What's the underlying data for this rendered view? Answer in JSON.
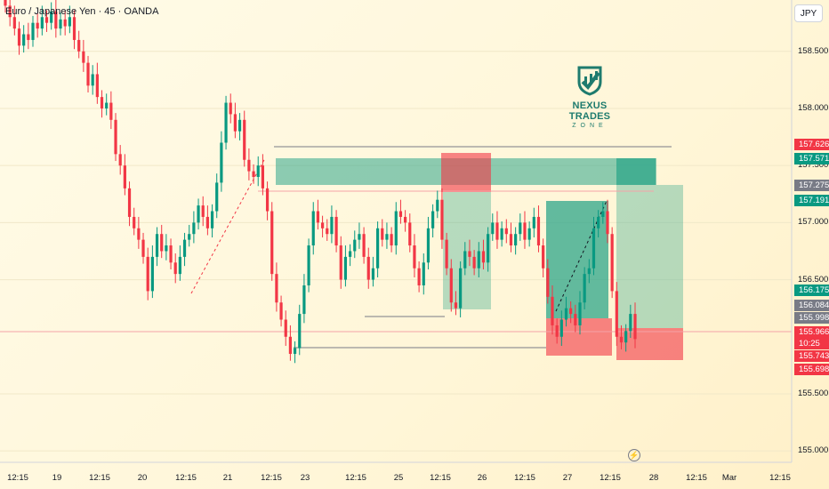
{
  "header": {
    "title": "Euro / Japanese Yen · 45 · OANDA",
    "currency_button": "JPY"
  },
  "logo": {
    "name": "NEXUS TRADES",
    "sub": "ZONE",
    "icon": "chart-shield-icon"
  },
  "price_axis": {
    "labels": [
      "158.500",
      "158.000",
      "157.500",
      "157.000",
      "156.500",
      "155.500",
      "155.000"
    ],
    "tags": [
      {
        "value": "157.626",
        "color": "#f23645"
      },
      {
        "value": "157.571",
        "color": "#089981"
      },
      {
        "value": "157.275",
        "color": "#787b86"
      },
      {
        "value": "157.191",
        "color": "#089981"
      },
      {
        "value": "156.175",
        "color": "#089981"
      },
      {
        "value": "156.084",
        "color": "#787b86"
      },
      {
        "value": "155.998",
        "color": "#787b86"
      },
      {
        "value": "155.966",
        "color": "#f23645"
      },
      {
        "value": "10:25",
        "color": "#f23645"
      },
      {
        "value": "155.743",
        "color": "#f23645"
      },
      {
        "value": "155.698",
        "color": "#f23645"
      }
    ]
  },
  "time_axis": {
    "labels": [
      "12:15",
      "19",
      "12:15",
      "20",
      "12:15",
      "21",
      "12:15",
      "23",
      "12:15",
      "25",
      "12:15",
      "26",
      "12:15",
      "27",
      "12:15",
      "28",
      "12:15",
      "Mar",
      "12:15"
    ]
  },
  "colors": {
    "up": "#089981",
    "down": "#f23645",
    "zone_green": "#2ea58a",
    "zone_red": "#f23645"
  },
  "chart_data": {
    "type": "candlestick",
    "symbol": "Euro / Japanese Yen",
    "interval": "45",
    "ylim": [
      154.9,
      158.95
    ],
    "close": [
      158.9,
      158.8,
      158.7,
      158.55,
      158.65,
      158.6,
      158.75,
      158.7,
      158.8,
      158.75,
      158.85,
      158.7,
      158.78,
      158.72,
      158.8,
      158.6,
      158.5,
      158.4,
      158.2,
      158.3,
      158.1,
      158.0,
      158.05,
      157.9,
      157.6,
      157.5,
      157.3,
      157.05,
      156.95,
      156.85,
      156.7,
      156.4,
      156.7,
      156.9,
      156.75,
      156.8,
      156.65,
      156.55,
      156.7,
      156.85,
      156.9,
      157.0,
      157.15,
      157.05,
      156.95,
      157.1,
      157.35,
      157.7,
      158.05,
      157.95,
      157.8,
      157.9,
      157.55,
      157.45,
      157.4,
      157.5,
      157.3,
      157.1,
      156.55,
      156.3,
      156.15,
      156.0,
      155.85,
      155.9,
      156.2,
      156.45,
      156.8,
      157.1,
      157.0,
      156.95,
      156.9,
      157.05,
      156.8,
      156.5,
      156.7,
      156.75,
      156.85,
      156.9,
      156.7,
      156.5,
      156.6,
      156.95,
      156.85,
      156.9,
      156.8,
      157.1,
      157.05,
      157.0,
      156.8,
      156.6,
      156.45,
      156.65,
      156.95,
      157.1,
      157.2,
      156.85,
      156.6,
      156.3,
      156.25,
      156.6,
      156.75,
      156.7,
      156.6,
      156.75,
      156.65,
      156.9,
      157.0,
      156.85,
      156.95,
      156.9,
      156.8,
      156.9,
      157.0,
      156.85,
      156.95,
      157.05,
      156.8,
      156.6,
      156.35,
      156.1,
      156.0,
      156.15,
      156.25,
      156.2,
      156.1,
      156.3,
      156.55,
      156.6,
      156.95,
      157.05,
      157.1,
      156.9,
      156.4,
      156.0,
      155.95,
      156.05,
      156.2,
      155.98
    ]
  }
}
